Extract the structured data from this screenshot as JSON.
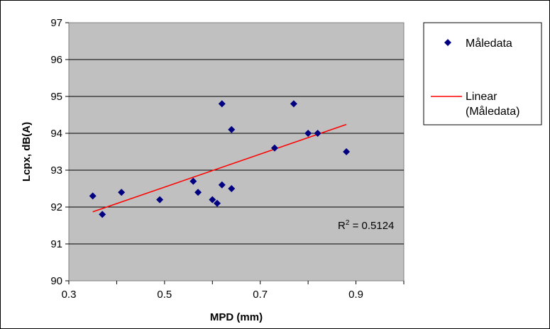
{
  "chart_data": {
    "type": "scatter",
    "xlabel": "MPD  (mm)",
    "ylabel": "Lcpx,  dB(A)",
    "xlim": [
      0.3,
      1.0
    ],
    "ylim": [
      90,
      97
    ],
    "x_ticks": [
      "0.3",
      "0.5",
      "0.7",
      "0.9"
    ],
    "y_ticks": [
      "90",
      "91",
      "92",
      "93",
      "94",
      "95",
      "96",
      "97"
    ],
    "grid": "horizontal",
    "legend_position": "right",
    "colors": {
      "plot_background": "#c0c0c0",
      "points": "#000080",
      "trendline": "#ff0000"
    },
    "series": [
      {
        "name": "Måledata",
        "marker": "diamond",
        "points": [
          {
            "x": 0.35,
            "y": 92.3
          },
          {
            "x": 0.37,
            "y": 91.8
          },
          {
            "x": 0.41,
            "y": 92.4
          },
          {
            "x": 0.49,
            "y": 92.2
          },
          {
            "x": 0.56,
            "y": 92.7
          },
          {
            "x": 0.57,
            "y": 92.4
          },
          {
            "x": 0.6,
            "y": 92.2
          },
          {
            "x": 0.61,
            "y": 92.1
          },
          {
            "x": 0.62,
            "y": 92.6
          },
          {
            "x": 0.62,
            "y": 94.8
          },
          {
            "x": 0.64,
            "y": 92.5
          },
          {
            "x": 0.64,
            "y": 94.1
          },
          {
            "x": 0.73,
            "y": 93.6
          },
          {
            "x": 0.77,
            "y": 94.8
          },
          {
            "x": 0.8,
            "y": 94.0
          },
          {
            "x": 0.82,
            "y": 94.0
          },
          {
            "x": 0.88,
            "y": 93.5
          }
        ]
      }
    ],
    "trendline": {
      "name_line1": "Linear",
      "name_line2": "(Måledata)",
      "type": "linear",
      "x_start": 0.35,
      "y_start": 91.87,
      "x_end": 0.88,
      "y_end": 94.24,
      "r2_prefix": "R",
      "r2_sup": "2",
      "r2_value": " = 0.5124"
    }
  }
}
